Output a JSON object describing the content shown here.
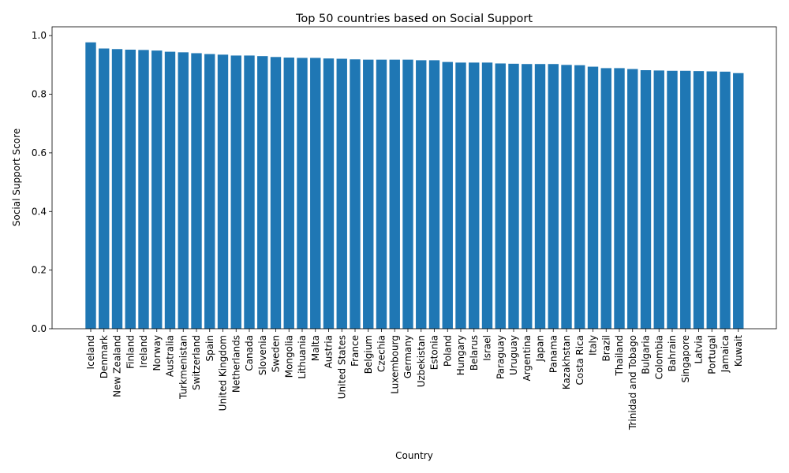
{
  "chart_data": {
    "type": "bar",
    "title": "Top 50 countries based on Social Support",
    "xlabel": "Country",
    "ylabel": "Social Support Score",
    "ylim": [
      0,
      1.03
    ],
    "yticks": [
      "0.0",
      "0.2",
      "0.4",
      "0.6",
      "0.8",
      "1.0"
    ],
    "bar_color": "#1f77b4",
    "grid": false,
    "categories": [
      "Iceland",
      "Denmark",
      "New Zealand",
      "Finland",
      "Ireland",
      "Norway",
      "Australia",
      "Turkmenistan",
      "Switzerland",
      "Spain",
      "United Kingdom",
      "Netherlands",
      "Canada",
      "Slovenia",
      "Sweden",
      "Mongolia",
      "Lithuania",
      "Malta",
      "Austria",
      "United States",
      "France",
      "Belgium",
      "Czechia",
      "Luxembourg",
      "Germany",
      "Uzbekistan",
      "Estonia",
      "Poland",
      "Hungary",
      "Belarus",
      "Israel",
      "Paraguay",
      "Uruguay",
      "Argentina",
      "Japan",
      "Panama",
      "Kazakhstan",
      "Costa Rica",
      "Italy",
      "Brazil",
      "Thailand",
      "Trinidad and Tobago",
      "Bulgaria",
      "Colombia",
      "Bahrain",
      "Singapore",
      "Latvia",
      "Portugal",
      "Jamaica",
      "Kuwait"
    ],
    "values": [
      0.977,
      0.956,
      0.954,
      0.952,
      0.951,
      0.949,
      0.945,
      0.943,
      0.94,
      0.937,
      0.935,
      0.932,
      0.932,
      0.93,
      0.927,
      0.925,
      0.924,
      0.924,
      0.922,
      0.921,
      0.919,
      0.918,
      0.918,
      0.918,
      0.918,
      0.916,
      0.916,
      0.91,
      0.908,
      0.908,
      0.908,
      0.905,
      0.904,
      0.903,
      0.903,
      0.903,
      0.9,
      0.899,
      0.894,
      0.889,
      0.889,
      0.886,
      0.882,
      0.881,
      0.88,
      0.88,
      0.879,
      0.878,
      0.877,
      0.872
    ]
  }
}
